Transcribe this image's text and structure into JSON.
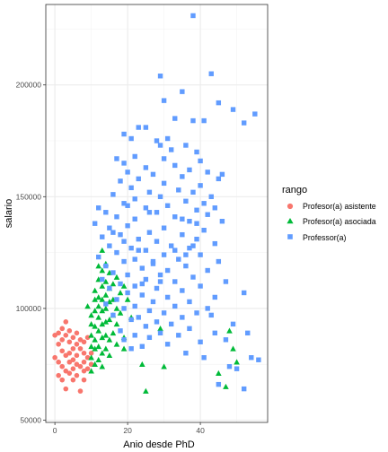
{
  "chart_data": {
    "type": "scatter",
    "xlabel": "Anio desde PhD",
    "ylabel": "salario",
    "xlim": [
      -2.5,
      58.5
    ],
    "ylim": [
      49000,
      236000
    ],
    "x_ticks": [
      0,
      20,
      40
    ],
    "y_ticks": [
      50000,
      100000,
      150000,
      200000
    ],
    "y_tick_labels": [
      "50000",
      "100000",
      "150000",
      "200000"
    ],
    "grid": true,
    "legend": {
      "title": "rango",
      "position": "right"
    },
    "series": [
      {
        "name": "Profesor(a) asistente",
        "shape": "circle",
        "color": "#F8766D",
        "points": [
          [
            0,
            88000
          ],
          [
            0,
            78000
          ],
          [
            1,
            89000
          ],
          [
            1,
            84000
          ],
          [
            1,
            76000
          ],
          [
            1,
            70000
          ],
          [
            2,
            91000
          ],
          [
            2,
            86000
          ],
          [
            2,
            81000
          ],
          [
            2,
            74000
          ],
          [
            2,
            68000
          ],
          [
            3,
            94000
          ],
          [
            3,
            88000
          ],
          [
            3,
            79000
          ],
          [
            3,
            72000
          ],
          [
            3,
            64000
          ],
          [
            4,
            90000
          ],
          [
            4,
            85000
          ],
          [
            4,
            80000
          ],
          [
            4,
            76000
          ],
          [
            4,
            71000
          ],
          [
            5,
            87000
          ],
          [
            5,
            82000
          ],
          [
            5,
            77000
          ],
          [
            5,
            73000
          ],
          [
            5,
            68000
          ],
          [
            6,
            89000
          ],
          [
            6,
            84000
          ],
          [
            6,
            79000
          ],
          [
            6,
            75000
          ],
          [
            6,
            70000
          ],
          [
            7,
            86000
          ],
          [
            7,
            82000
          ],
          [
            7,
            74000
          ],
          [
            7,
            63000
          ],
          [
            8,
            85000
          ],
          [
            8,
            80000
          ],
          [
            8,
            76000
          ],
          [
            8,
            72000
          ],
          [
            8,
            68000
          ],
          [
            9,
            87000
          ],
          [
            9,
            78000
          ],
          [
            9,
            73000
          ],
          [
            10,
            80000
          ],
          [
            10,
            75000
          ]
        ]
      },
      {
        "name": "Profesor(a) asociada",
        "shape": "triangle",
        "color": "#00BA38",
        "points": [
          [
            9,
            101000
          ],
          [
            10,
            97000
          ],
          [
            10,
            93000
          ],
          [
            10,
            88000
          ],
          [
            10,
            83000
          ],
          [
            10,
            78000
          ],
          [
            10,
            72000
          ],
          [
            11,
            108000
          ],
          [
            11,
            104000
          ],
          [
            11,
            99000
          ],
          [
            11,
            92000
          ],
          [
            11,
            86000
          ],
          [
            11,
            82000
          ],
          [
            11,
            75000
          ],
          [
            12,
            119000
          ],
          [
            12,
            113000
          ],
          [
            12,
            105000
          ],
          [
            12,
            101000
          ],
          [
            12,
            96000
          ],
          [
            12,
            90000
          ],
          [
            12,
            83000
          ],
          [
            12,
            77000
          ],
          [
            13,
            126000
          ],
          [
            13,
            117000
          ],
          [
            13,
            110000
          ],
          [
            13,
            104000
          ],
          [
            13,
            99000
          ],
          [
            13,
            93000
          ],
          [
            13,
            87000
          ],
          [
            13,
            80000
          ],
          [
            13,
            74000
          ],
          [
            14,
            120000
          ],
          [
            14,
            112000
          ],
          [
            14,
            106000
          ],
          [
            14,
            100000
          ],
          [
            14,
            94000
          ],
          [
            14,
            88000
          ],
          [
            14,
            82000
          ],
          [
            15,
            116000
          ],
          [
            15,
            109000
          ],
          [
            15,
            103000
          ],
          [
            15,
            95000
          ],
          [
            15,
            86000
          ],
          [
            15,
            79000
          ],
          [
            16,
            111000
          ],
          [
            16,
            104000
          ],
          [
            16,
            97000
          ],
          [
            16,
            89000
          ],
          [
            17,
            114000
          ],
          [
            17,
            100000
          ],
          [
            17,
            93000
          ],
          [
            17,
            84000
          ],
          [
            18,
            107000
          ],
          [
            18,
            98000
          ],
          [
            19,
            110000
          ],
          [
            19,
            87000
          ],
          [
            19,
            82000
          ],
          [
            20,
            104000
          ],
          [
            21,
            96000
          ],
          [
            24,
            75000
          ],
          [
            25,
            63000
          ],
          [
            29,
            91000
          ],
          [
            30,
            74000
          ],
          [
            45,
            71000
          ],
          [
            47,
            65000
          ],
          [
            48,
            90000
          ],
          [
            49,
            82000
          ],
          [
            50,
            76000
          ]
        ]
      },
      {
        "name": "Professor(a)",
        "shape": "square",
        "color": "#619CFF",
        "points": [
          [
            38,
            231000
          ],
          [
            43,
            205000
          ],
          [
            29,
            204000
          ],
          [
            35,
            197000
          ],
          [
            30,
            193000
          ],
          [
            45,
            192000
          ],
          [
            49,
            189000
          ],
          [
            55,
            187000
          ],
          [
            33,
            185000
          ],
          [
            38,
            184000
          ],
          [
            41,
            184000
          ],
          [
            52,
            183000
          ],
          [
            23,
            181000
          ],
          [
            25,
            181000
          ],
          [
            19,
            178000
          ],
          [
            21,
            176000
          ],
          [
            31,
            176000
          ],
          [
            28,
            175000
          ],
          [
            36,
            173000
          ],
          [
            29,
            173000
          ],
          [
            32,
            171000
          ],
          [
            39,
            170000
          ],
          [
            22,
            168000
          ],
          [
            17,
            167000
          ],
          [
            30,
            167000
          ],
          [
            40,
            166000
          ],
          [
            19,
            165000
          ],
          [
            33,
            164000
          ],
          [
            25,
            163000
          ],
          [
            37,
            162000
          ],
          [
            20,
            161000
          ],
          [
            42,
            161000
          ],
          [
            27,
            160000
          ],
          [
            35,
            159000
          ],
          [
            23,
            158000
          ],
          [
            45,
            158000
          ],
          [
            18,
            157000
          ],
          [
            30,
            156000
          ],
          [
            40,
            155000
          ],
          [
            21,
            154000
          ],
          [
            34,
            153000
          ],
          [
            26,
            152000
          ],
          [
            38,
            152000
          ],
          [
            16,
            151000
          ],
          [
            29,
            150000
          ],
          [
            43,
            150000
          ],
          [
            22,
            149000
          ],
          [
            36,
            148000
          ],
          [
            19,
            147000
          ],
          [
            31,
            146000
          ],
          [
            25,
            145000
          ],
          [
            39,
            144000
          ],
          [
            14,
            143000
          ],
          [
            28,
            143000
          ],
          [
            42,
            142000
          ],
          [
            17,
            141000
          ],
          [
            33,
            141000
          ],
          [
            22,
            140000
          ],
          [
            37,
            139000
          ],
          [
            46,
            139000
          ],
          [
            11,
            138000
          ],
          [
            20,
            137000
          ],
          [
            30,
            136000
          ],
          [
            41,
            135000
          ],
          [
            16,
            134000
          ],
          [
            26,
            134000
          ],
          [
            35,
            133000
          ],
          [
            13,
            132000
          ],
          [
            23,
            131000
          ],
          [
            39,
            131000
          ],
          [
            19,
            130000
          ],
          [
            28,
            130000
          ],
          [
            44,
            129000
          ],
          [
            15,
            128000
          ],
          [
            32,
            128000
          ],
          [
            21,
            127000
          ],
          [
            37,
            127000
          ],
          [
            25,
            126000
          ],
          [
            17,
            125000
          ],
          [
            30,
            124000
          ],
          [
            40,
            124000
          ],
          [
            12,
            123000
          ],
          [
            22,
            122000
          ],
          [
            34,
            122000
          ],
          [
            45,
            121000
          ],
          [
            19,
            121000
          ],
          [
            27,
            120000
          ],
          [
            14,
            119000
          ],
          [
            36,
            119000
          ],
          [
            24,
            118000
          ],
          [
            31,
            117000
          ],
          [
            42,
            117000
          ],
          [
            16,
            116000
          ],
          [
            20,
            115000
          ],
          [
            29,
            115000
          ],
          [
            38,
            114000
          ],
          [
            13,
            113000
          ],
          [
            25,
            113000
          ],
          [
            33,
            112000
          ],
          [
            47,
            112000
          ],
          [
            18,
            111000
          ],
          [
            22,
            110000
          ],
          [
            40,
            110000
          ],
          [
            15,
            109000
          ],
          [
            28,
            109000
          ],
          [
            35,
            108000
          ],
          [
            52,
            107000
          ],
          [
            20,
            107000
          ],
          [
            24,
            106000
          ],
          [
            31,
            105000
          ],
          [
            44,
            105000
          ],
          [
            17,
            104000
          ],
          [
            27,
            103000
          ],
          [
            37,
            103000
          ],
          [
            14,
            102000
          ],
          [
            22,
            101000
          ],
          [
            33,
            101000
          ],
          [
            42,
            100000
          ],
          [
            19,
            100000
          ],
          [
            26,
            99000
          ],
          [
            30,
            98000
          ],
          [
            39,
            98000
          ],
          [
            16,
            97000
          ],
          [
            23,
            96000
          ],
          [
            35,
            96000
          ],
          [
            21,
            95000
          ],
          [
            28,
            94000
          ],
          [
            32,
            93000
          ],
          [
            25,
            92000
          ],
          [
            37,
            91000
          ],
          [
            18,
            90000
          ],
          [
            29,
            89000
          ],
          [
            44,
            89000
          ],
          [
            22,
            88000
          ],
          [
            34,
            88000
          ],
          [
            26,
            87000
          ],
          [
            19,
            86000
          ],
          [
            40,
            85000
          ],
          [
            31,
            84000
          ],
          [
            24,
            83000
          ],
          [
            21,
            82000
          ],
          [
            36,
            80000
          ],
          [
            41,
            78000
          ],
          [
            48,
            74000
          ],
          [
            50,
            73000
          ],
          [
            54,
            78000
          ],
          [
            56,
            77000
          ],
          [
            52,
            64000
          ],
          [
            45,
            66000
          ],
          [
            47,
            86000
          ],
          [
            49,
            93000
          ],
          [
            53,
            89000
          ],
          [
            43,
            97000
          ],
          [
            27,
            121000
          ],
          [
            38,
            128000
          ],
          [
            44,
            145000
          ],
          [
            46,
            160000
          ],
          [
            41,
            147000
          ],
          [
            35,
            140000
          ],
          [
            23,
            126000
          ],
          [
            18,
            133000
          ],
          [
            12,
            145000
          ],
          [
            29,
            112000
          ],
          [
            33,
            126000
          ],
          [
            39,
            138000
          ],
          [
            26,
            143000
          ],
          [
            20,
            146000
          ],
          [
            15,
            136000
          ],
          [
            36,
            124000
          ],
          [
            24,
            111000
          ]
        ]
      }
    ]
  }
}
